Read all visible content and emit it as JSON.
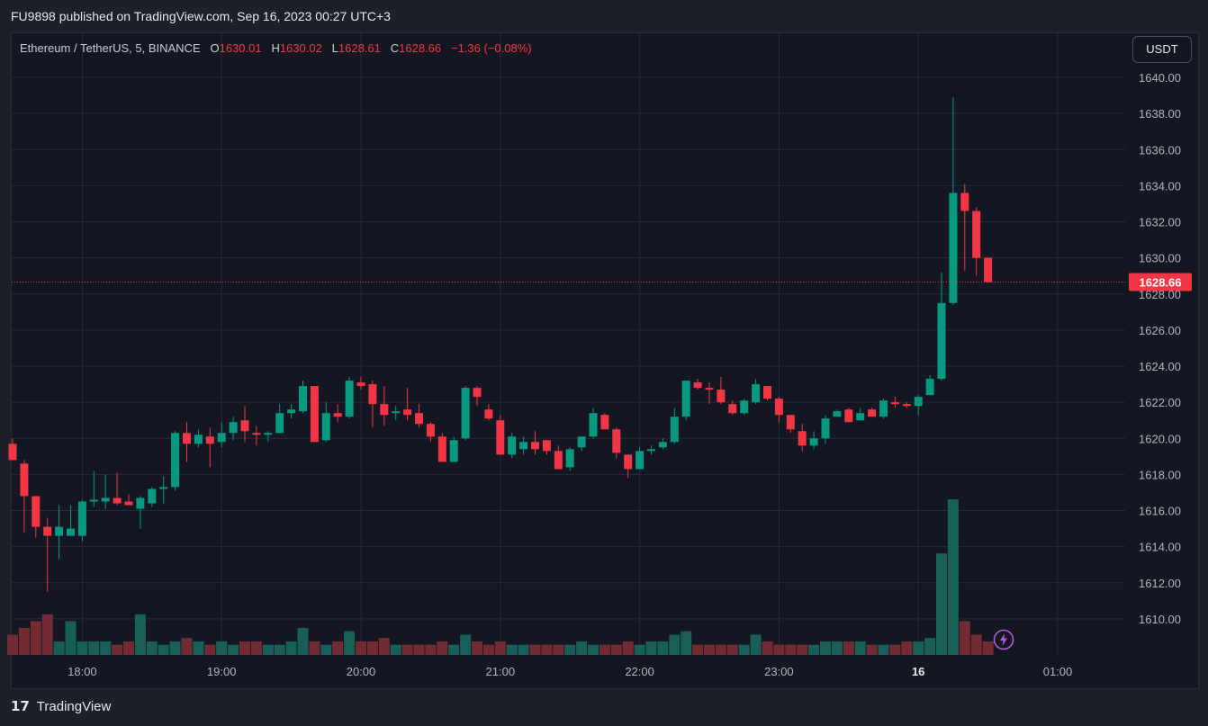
{
  "header": {
    "published_text": "FU9898 published on TradingView.com, Sep 16, 2023 00:27 UTC+3"
  },
  "legend": {
    "symbol": "Ethereum / TetherUS, 5, BINANCE",
    "open_label": "O",
    "open": "1630.01",
    "high_label": "H",
    "high": "1630.02",
    "low_label": "L",
    "low": "1628.61",
    "close_label": "C",
    "close": "1628.66",
    "change": "−1.36 (−0.08%)"
  },
  "currency_button": "USDT",
  "last_price_label": "1628.66",
  "footer": {
    "brand": "TradingView"
  },
  "icons": {
    "flash": "lightning-icon",
    "brand": "tradingview-logo-icon"
  },
  "colors": {
    "up": "#089981",
    "down": "#f23645",
    "grid": "#262a35",
    "price_line": "#f23645"
  },
  "chart_data": {
    "type": "candlestick",
    "interval": "5m",
    "y_ticks": [
      1610,
      1612,
      1614,
      1616,
      1618,
      1620,
      1622,
      1624,
      1626,
      1628,
      1630,
      1632,
      1634,
      1636,
      1638,
      1640
    ],
    "ylim": [
      1608,
      1641
    ],
    "x_ticks": [
      "18:00",
      "19:00",
      "20:00",
      "21:00",
      "22:00",
      "23:00",
      "16",
      "01:00"
    ],
    "last_price": 1628.66,
    "candles": [
      {
        "o": 1619.7,
        "h": 1620.0,
        "l": 1618.8,
        "c": 1618.8,
        "v": 3
      },
      {
        "o": 1618.6,
        "h": 1618.8,
        "l": 1614.8,
        "c": 1616.8,
        "v": 4
      },
      {
        "o": 1616.8,
        "h": 1616.8,
        "l": 1614.5,
        "c": 1615.1,
        "v": 5
      },
      {
        "o": 1615.1,
        "h": 1615.6,
        "l": 1611.5,
        "c": 1614.6,
        "v": 6
      },
      {
        "o": 1614.6,
        "h": 1616.3,
        "l": 1613.3,
        "c": 1615.1,
        "v": 2
      },
      {
        "o": 1614.6,
        "h": 1616.3,
        "l": 1614.6,
        "c": 1615.0,
        "v": 5
      },
      {
        "o": 1614.6,
        "h": 1616.6,
        "l": 1614.3,
        "c": 1616.5,
        "v": 2
      },
      {
        "o": 1616.5,
        "h": 1618.2,
        "l": 1616.2,
        "c": 1616.6,
        "v": 2
      },
      {
        "o": 1616.5,
        "h": 1618.0,
        "l": 1616.1,
        "c": 1616.7,
        "v": 2
      },
      {
        "o": 1616.7,
        "h": 1618.1,
        "l": 1616.3,
        "c": 1616.4,
        "v": 1.5
      },
      {
        "o": 1616.5,
        "h": 1616.9,
        "l": 1616.3,
        "c": 1616.3,
        "v": 2
      },
      {
        "o": 1616.1,
        "h": 1616.8,
        "l": 1615.0,
        "c": 1616.7,
        "v": 6
      },
      {
        "o": 1616.4,
        "h": 1617.3,
        "l": 1616.2,
        "c": 1617.2,
        "v": 2
      },
      {
        "o": 1617.2,
        "h": 1617.9,
        "l": 1616.4,
        "c": 1617.3,
        "v": 1.5
      },
      {
        "o": 1617.3,
        "h": 1620.4,
        "l": 1617.1,
        "c": 1620.3,
        "v": 2
      },
      {
        "o": 1620.3,
        "h": 1620.9,
        "l": 1618.7,
        "c": 1619.7,
        "v": 2.5
      },
      {
        "o": 1619.7,
        "h": 1620.5,
        "l": 1619.5,
        "c": 1620.2,
        "v": 2
      },
      {
        "o": 1620.1,
        "h": 1620.6,
        "l": 1618.4,
        "c": 1619.7,
        "v": 1.5
      },
      {
        "o": 1619.8,
        "h": 1620.9,
        "l": 1619.5,
        "c": 1620.3,
        "v": 2
      },
      {
        "o": 1620.3,
        "h": 1621.2,
        "l": 1619.9,
        "c": 1620.9,
        "v": 1.5
      },
      {
        "o": 1621.0,
        "h": 1621.8,
        "l": 1619.8,
        "c": 1620.4,
        "v": 2
      },
      {
        "o": 1620.3,
        "h": 1620.7,
        "l": 1619.6,
        "c": 1620.2,
        "v": 2
      },
      {
        "o": 1620.2,
        "h": 1620.4,
        "l": 1619.8,
        "c": 1620.3,
        "v": 1.5
      },
      {
        "o": 1620.3,
        "h": 1621.9,
        "l": 1620.3,
        "c": 1621.4,
        "v": 1.5
      },
      {
        "o": 1621.4,
        "h": 1621.9,
        "l": 1621.1,
        "c": 1621.6,
        "v": 2
      },
      {
        "o": 1621.5,
        "h": 1623.2,
        "l": 1621.4,
        "c": 1622.9,
        "v": 4
      },
      {
        "o": 1622.9,
        "h": 1622.9,
        "l": 1619.8,
        "c": 1619.8,
        "v": 2
      },
      {
        "o": 1619.9,
        "h": 1622.0,
        "l": 1619.8,
        "c": 1621.4,
        "v": 1.5
      },
      {
        "o": 1621.4,
        "h": 1621.9,
        "l": 1620.9,
        "c": 1621.2,
        "v": 2
      },
      {
        "o": 1621.2,
        "h": 1623.4,
        "l": 1621.1,
        "c": 1623.2,
        "v": 3.5
      },
      {
        "o": 1623.1,
        "h": 1623.4,
        "l": 1622.7,
        "c": 1622.9,
        "v": 2
      },
      {
        "o": 1623.0,
        "h": 1623.2,
        "l": 1620.6,
        "c": 1621.9,
        "v": 2
      },
      {
        "o": 1621.9,
        "h": 1622.9,
        "l": 1620.7,
        "c": 1621.3,
        "v": 2.5
      },
      {
        "o": 1621.4,
        "h": 1621.8,
        "l": 1621.0,
        "c": 1621.5,
        "v": 1.5
      },
      {
        "o": 1621.6,
        "h": 1622.8,
        "l": 1621.0,
        "c": 1621.3,
        "v": 1.5
      },
      {
        "o": 1621.4,
        "h": 1621.9,
        "l": 1620.6,
        "c": 1620.8,
        "v": 1.5
      },
      {
        "o": 1620.8,
        "h": 1620.9,
        "l": 1619.8,
        "c": 1620.1,
        "v": 1.5
      },
      {
        "o": 1620.1,
        "h": 1620.3,
        "l": 1618.7,
        "c": 1618.7,
        "v": 2
      },
      {
        "o": 1618.7,
        "h": 1620.1,
        "l": 1618.7,
        "c": 1619.9,
        "v": 1.5
      },
      {
        "o": 1620.0,
        "h": 1622.9,
        "l": 1619.9,
        "c": 1622.8,
        "v": 3
      },
      {
        "o": 1622.8,
        "h": 1622.9,
        "l": 1621.8,
        "c": 1622.3,
        "v": 2
      },
      {
        "o": 1621.6,
        "h": 1621.9,
        "l": 1621.0,
        "c": 1621.1,
        "v": 1.5
      },
      {
        "o": 1621.0,
        "h": 1621.3,
        "l": 1619.1,
        "c": 1619.1,
        "v": 2
      },
      {
        "o": 1619.1,
        "h": 1620.3,
        "l": 1618.9,
        "c": 1620.1,
        "v": 1.5
      },
      {
        "o": 1619.4,
        "h": 1620.1,
        "l": 1619.1,
        "c": 1619.8,
        "v": 1.5
      },
      {
        "o": 1619.8,
        "h": 1620.4,
        "l": 1619.1,
        "c": 1619.4,
        "v": 1.5
      },
      {
        "o": 1619.9,
        "h": 1619.9,
        "l": 1619.1,
        "c": 1619.3,
        "v": 1.5
      },
      {
        "o": 1619.3,
        "h": 1619.6,
        "l": 1618.3,
        "c": 1618.3,
        "v": 1.5
      },
      {
        "o": 1618.4,
        "h": 1619.5,
        "l": 1618.2,
        "c": 1619.4,
        "v": 1.5
      },
      {
        "o": 1619.5,
        "h": 1620.1,
        "l": 1619.3,
        "c": 1620.1,
        "v": 2
      },
      {
        "o": 1620.1,
        "h": 1621.7,
        "l": 1620.0,
        "c": 1621.4,
        "v": 1.5
      },
      {
        "o": 1621.3,
        "h": 1621.4,
        "l": 1620.5,
        "c": 1620.5,
        "v": 1.5
      },
      {
        "o": 1620.5,
        "h": 1620.6,
        "l": 1618.9,
        "c": 1619.2,
        "v": 1.5
      },
      {
        "o": 1619.1,
        "h": 1619.1,
        "l": 1617.8,
        "c": 1618.3,
        "v": 2
      },
      {
        "o": 1618.3,
        "h": 1619.5,
        "l": 1618.3,
        "c": 1619.3,
        "v": 1.5
      },
      {
        "o": 1619.3,
        "h": 1619.6,
        "l": 1619.1,
        "c": 1619.4,
        "v": 2
      },
      {
        "o": 1619.5,
        "h": 1620.0,
        "l": 1619.4,
        "c": 1619.8,
        "v": 2
      },
      {
        "o": 1619.8,
        "h": 1621.7,
        "l": 1619.7,
        "c": 1621.2,
        "v": 3
      },
      {
        "o": 1621.2,
        "h": 1623.2,
        "l": 1621.0,
        "c": 1623.2,
        "v": 3.5
      },
      {
        "o": 1623.1,
        "h": 1623.3,
        "l": 1622.7,
        "c": 1622.8,
        "v": 1.5
      },
      {
        "o": 1622.8,
        "h": 1623.1,
        "l": 1621.9,
        "c": 1622.7,
        "v": 1.5
      },
      {
        "o": 1622.7,
        "h": 1623.4,
        "l": 1621.9,
        "c": 1622.0,
        "v": 1.5
      },
      {
        "o": 1621.9,
        "h": 1622.1,
        "l": 1621.3,
        "c": 1621.4,
        "v": 1.5
      },
      {
        "o": 1621.4,
        "h": 1622.2,
        "l": 1621.3,
        "c": 1622.1,
        "v": 1.5
      },
      {
        "o": 1622.0,
        "h": 1623.3,
        "l": 1621.9,
        "c": 1623.0,
        "v": 3
      },
      {
        "o": 1622.9,
        "h": 1622.9,
        "l": 1622.1,
        "c": 1622.2,
        "v": 2
      },
      {
        "o": 1622.2,
        "h": 1622.3,
        "l": 1620.9,
        "c": 1621.3,
        "v": 1.5
      },
      {
        "o": 1621.3,
        "h": 1621.3,
        "l": 1620.3,
        "c": 1620.5,
        "v": 1.5
      },
      {
        "o": 1620.4,
        "h": 1620.8,
        "l": 1619.3,
        "c": 1619.6,
        "v": 1.5
      },
      {
        "o": 1619.6,
        "h": 1620.4,
        "l": 1619.4,
        "c": 1620.0,
        "v": 1.5
      },
      {
        "o": 1620.0,
        "h": 1621.3,
        "l": 1619.7,
        "c": 1621.1,
        "v": 2
      },
      {
        "o": 1621.2,
        "h": 1621.6,
        "l": 1621.2,
        "c": 1621.5,
        "v": 2
      },
      {
        "o": 1621.6,
        "h": 1621.7,
        "l": 1620.9,
        "c": 1620.9,
        "v": 2
      },
      {
        "o": 1621.0,
        "h": 1621.7,
        "l": 1621.0,
        "c": 1621.4,
        "v": 2
      },
      {
        "o": 1621.6,
        "h": 1621.7,
        "l": 1621.2,
        "c": 1621.2,
        "v": 1.5
      },
      {
        "o": 1621.2,
        "h": 1622.2,
        "l": 1621.1,
        "c": 1622.1,
        "v": 1.5
      },
      {
        "o": 1622.0,
        "h": 1622.3,
        "l": 1621.7,
        "c": 1621.9,
        "v": 1.5
      },
      {
        "o": 1621.9,
        "h": 1622.0,
        "l": 1621.7,
        "c": 1621.8,
        "v": 2
      },
      {
        "o": 1621.8,
        "h": 1622.4,
        "l": 1621.3,
        "c": 1622.3,
        "v": 2
      },
      {
        "o": 1622.4,
        "h": 1623.5,
        "l": 1622.4,
        "c": 1623.3,
        "v": 2.5
      },
      {
        "o": 1623.3,
        "h": 1629.2,
        "l": 1623.2,
        "c": 1627.5,
        "v": 15
      },
      {
        "o": 1627.5,
        "h": 1638.9,
        "l": 1627.4,
        "c": 1633.6,
        "v": 23
      },
      {
        "o": 1633.6,
        "h": 1634.1,
        "l": 1629.3,
        "c": 1632.6,
        "v": 5
      },
      {
        "o": 1632.6,
        "h": 1632.8,
        "l": 1629.0,
        "c": 1630.0,
        "v": 3
      },
      {
        "o": 1630.01,
        "h": 1630.02,
        "l": 1628.61,
        "c": 1628.66,
        "v": 2
      }
    ]
  }
}
